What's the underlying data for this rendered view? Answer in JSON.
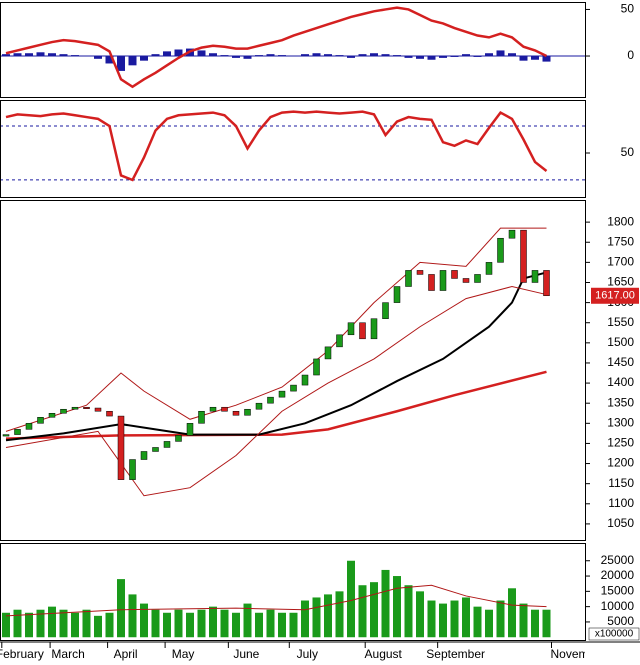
{
  "chart_data": [
    {
      "type": "macd",
      "ylim": [
        -44,
        58
      ],
      "yticks": [
        0,
        50
      ],
      "line": {
        "color": "#d42020",
        "values": [
          3,
          6,
          9,
          12,
          15,
          17,
          16,
          14,
          12,
          5,
          -25,
          -33,
          -25,
          -18,
          -10,
          -2,
          5,
          9,
          11,
          10,
          8,
          8,
          11,
          14,
          17,
          22,
          26,
          30,
          34,
          38,
          42,
          45,
          48,
          50,
          52,
          50,
          44,
          38,
          35,
          30,
          26,
          22,
          20,
          24,
          20,
          10,
          6,
          0
        ]
      },
      "histogram": {
        "color": "#1a1aa0",
        "values": [
          2,
          3,
          3,
          4,
          3,
          2,
          1,
          0,
          -3,
          -8,
          -16,
          -10,
          -5,
          2,
          5,
          7,
          8,
          6,
          3,
          1,
          -2,
          -3,
          1,
          2,
          1,
          0,
          2,
          3,
          2,
          1,
          -2,
          2,
          3,
          2,
          1,
          -2,
          -3,
          -4,
          -2,
          -1,
          2,
          -1,
          3,
          6,
          3,
          -5,
          -4,
          -6
        ]
      }
    },
    {
      "type": "line",
      "ylim": [
        1,
        109
      ],
      "yticks": [
        50
      ],
      "levels": [
        80,
        20
      ],
      "color": "#d42020",
      "values": [
        90,
        93,
        92,
        91,
        93,
        94,
        92,
        90,
        88,
        80,
        25,
        20,
        45,
        75,
        88,
        92,
        93,
        94,
        95,
        92,
        80,
        55,
        75,
        90,
        95,
        96,
        95,
        96,
        95,
        94,
        95,
        96,
        93,
        70,
        85,
        90,
        88,
        87,
        62,
        58,
        64,
        60,
        78,
        95,
        88,
        65,
        40,
        30
      ]
    },
    {
      "type": "candlestick",
      "ylim": [
        1010,
        1855
      ],
      "yticks": [
        1050,
        1100,
        1150,
        1200,
        1250,
        1300,
        1350,
        1400,
        1450,
        1500,
        1550,
        1600,
        1650,
        1700,
        1750,
        1800
      ],
      "up_color": "#1a9a1a",
      "down_color": "#d42020",
      "close": [
        1272,
        1285,
        1300,
        1315,
        1325,
        1335,
        1340,
        1338,
        1330,
        1318,
        1160,
        1210,
        1230,
        1240,
        1255,
        1270,
        1300,
        1330,
        1340,
        1330,
        1320,
        1335,
        1350,
        1365,
        1380,
        1395,
        1420,
        1460,
        1490,
        1520,
        1550,
        1510,
        1560,
        1600,
        1640,
        1680,
        1670,
        1630,
        1680,
        1660,
        1650,
        1670,
        1700,
        1760,
        1780,
        1650,
        1680,
        1617
      ],
      "last_value_label": "1617.00",
      "overlays": [
        {
          "color": "#d42020",
          "width": 2.5,
          "x": [
            0,
            10,
            24,
            28,
            34,
            39,
            47
          ],
          "values": [
            1262,
            1270,
            1272,
            1285,
            1330,
            1370,
            1428
          ]
        },
        {
          "color": "#000000",
          "width": 2,
          "x": [
            0,
            5,
            10,
            13,
            16,
            22,
            26,
            30,
            34,
            38,
            42,
            44,
            45,
            47
          ],
          "values": [
            1258,
            1275,
            1298,
            1285,
            1272,
            1272,
            1300,
            1345,
            1405,
            1460,
            1540,
            1600,
            1660,
            1675
          ]
        },
        {
          "color": "#b01818",
          "width": 1,
          "x": [
            0,
            7,
            10,
            12,
            16,
            20,
            24,
            28,
            32,
            36,
            40,
            43,
            47
          ],
          "values": [
            1280,
            1345,
            1425,
            1380,
            1310,
            1345,
            1390,
            1480,
            1600,
            1700,
            1690,
            1785,
            1785
          ]
        },
        {
          "color": "#b01818",
          "width": 1,
          "x": [
            0,
            8,
            10,
            12,
            16,
            20,
            24,
            28,
            32,
            36,
            40,
            44,
            47
          ],
          "values": [
            1240,
            1280,
            1200,
            1120,
            1140,
            1220,
            1330,
            1400,
            1460,
            1540,
            1610,
            1640,
            1620
          ]
        }
      ]
    },
    {
      "type": "bar",
      "ylim": [
        -900,
        30800
      ],
      "yticks": [
        5000,
        10000,
        15000,
        20000,
        25000
      ],
      "color": "#1a9a1a",
      "unit_label": "x100000",
      "values": [
        8000,
        9000,
        8000,
        9000,
        10000,
        9000,
        8000,
        9000,
        7000,
        8000,
        19000,
        14000,
        11000,
        9000,
        8000,
        9000,
        8000,
        9000,
        10000,
        9000,
        8000,
        11000,
        8000,
        9000,
        8000,
        8000,
        12000,
        13000,
        14000,
        15000,
        25000,
        17000,
        18000,
        22000,
        20000,
        17000,
        15000,
        12000,
        11000,
        12000,
        13000,
        10000,
        9000,
        12000,
        16000,
        11000,
        9000,
        9000
      ],
      "average": {
        "color": "#b01818",
        "x": [
          0,
          10,
          20,
          26,
          30,
          34,
          37,
          40,
          44,
          47
        ],
        "values": [
          7000,
          9000,
          9500,
          9000,
          12000,
          16000,
          17000,
          13500,
          10500,
          10000
        ]
      },
      "xticks": [
        {
          "value": 1.2,
          "label": "February"
        },
        {
          "value": 5.4,
          "label": "March"
        },
        {
          "value": 10.4,
          "label": "April"
        },
        {
          "value": 15.4,
          "label": "May"
        },
        {
          "value": 20.9,
          "label": "June"
        },
        {
          "value": 26.2,
          "label": "July"
        },
        {
          "value": 32.8,
          "label": "August"
        },
        {
          "value": 39.1,
          "label": "September"
        },
        {
          "value": 49,
          "label": "Novem"
        }
      ]
    }
  ]
}
